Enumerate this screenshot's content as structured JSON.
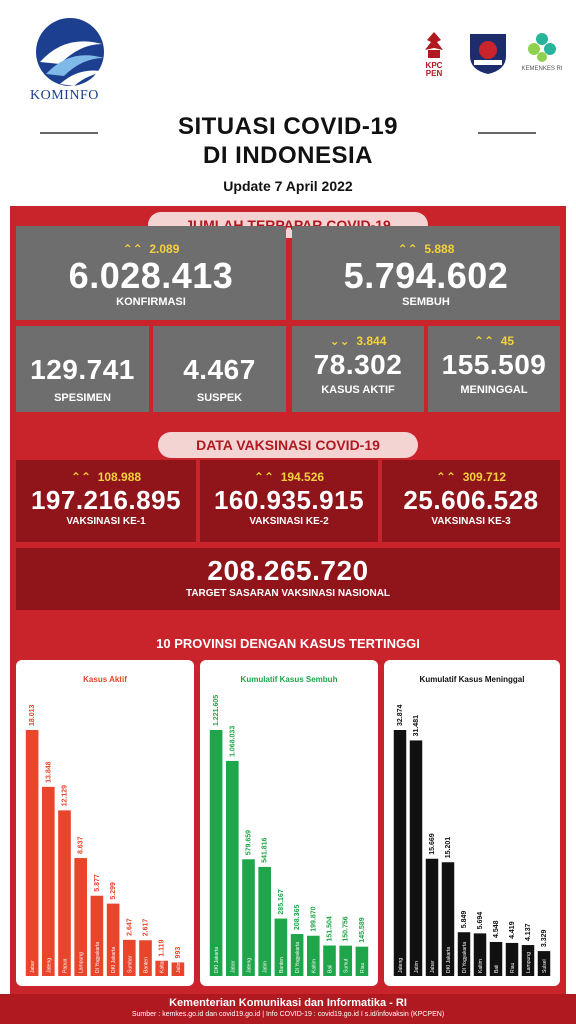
{
  "header": {
    "logo_text": "KOMINFO",
    "partners": [
      {
        "icon": "garuda-kpcpen-icon",
        "label": "KPC PEN"
      },
      {
        "icon": "satgas-covid-emblem-icon",
        "label": ""
      },
      {
        "icon": "kemenkes-icon",
        "label": "KEMENKES RI"
      }
    ],
    "title_line1": "SITUASI COVID-19",
    "title_line2": "DI INDONESIA",
    "update": "Update 7 April 2022"
  },
  "exposed": {
    "section_title": "JUMLAH TERPAPAR COVID-19",
    "konfirmasi": {
      "delta": "2.089",
      "value": "6.028.413",
      "label": "KONFIRMASI"
    },
    "sembuh": {
      "delta": "5.888",
      "value": "5.794.602",
      "label": "SEMBUH"
    },
    "spesimen": {
      "value": "129.741",
      "label": "SPESIMEN"
    },
    "suspek": {
      "value": "4.467",
      "label": "SUSPEK"
    },
    "aktif": {
      "delta": "3.844",
      "value": "78.302",
      "label": "KASUS AKTIF"
    },
    "meninggal": {
      "delta": "45",
      "value": "155.509",
      "label": "MENINGGAL"
    }
  },
  "vaccination": {
    "section_title": "DATA VAKSINASI COVID-19",
    "dose1": {
      "delta": "108.988",
      "value": "197.216.895",
      "label": "VAKSINASI KE-1"
    },
    "dose2": {
      "delta": "194.526",
      "value": "160.935.915",
      "label": "VAKSINASI KE-2"
    },
    "dose3": {
      "delta": "309.712",
      "value": "25.606.528",
      "label": "VAKSINASI KE-3"
    },
    "target": {
      "value": "208.265.720",
      "label": "TARGET SASARAN VAKSINASI NASIONAL"
    }
  },
  "provinces": {
    "section_title": "10 PROVINSI DENGAN KASUS TERTINGGI"
  },
  "chart_data": [
    {
      "type": "bar",
      "title": "Kasus Aktif",
      "color": "#e8452a",
      "categories": [
        "Jabar",
        "Jateng",
        "Papua",
        "Lampung",
        "DI Yogyakarta",
        "DKI Jakarta",
        "Sumbar",
        "Banten",
        "Kaltara",
        "Jatim"
      ],
      "labels": [
        "18.013",
        "13.848",
        "12.129",
        "8.637",
        "5.877",
        "5.299",
        "2.647",
        "2.617",
        "1.119",
        "993"
      ],
      "values": [
        18013,
        13848,
        12129,
        8637,
        5877,
        5299,
        2647,
        2617,
        1119,
        993
      ]
    },
    {
      "type": "bar",
      "title": "Kumulatif Kasus Sembuh",
      "color": "#1fa54a",
      "categories": [
        "DKI Jakarta",
        "Jabar",
        "Jateng",
        "Jatim",
        "Banten",
        "DI Yogyakarta",
        "Kaltim",
        "Bali",
        "Sumut",
        "Riau"
      ],
      "labels": [
        "1.221.605",
        "1.068.033",
        "579.659",
        "541.816",
        "285.167",
        "208.365",
        "199.870",
        "151.504",
        "150.756",
        "145.589"
      ],
      "values": [
        1221605,
        1068033,
        579659,
        541816,
        285167,
        208365,
        199870,
        151504,
        150756,
        145589
      ]
    },
    {
      "type": "bar",
      "title": "Kumulatif Kasus Meninggal",
      "color": "#111111",
      "categories": [
        "Jateng",
        "Jatim",
        "Jabar",
        "DKI Jakarta",
        "DI Yogyakarta",
        "Kaltim",
        "Bali",
        "Riau",
        "Lampung",
        "Sulsel"
      ],
      "labels": [
        "32.874",
        "31.481",
        "15.669",
        "15.201",
        "5.849",
        "5.694",
        "4.548",
        "4.419",
        "4.137",
        "3.329"
      ],
      "values": [
        32874,
        31481,
        15669,
        15201,
        5849,
        5694,
        4548,
        4419,
        4137,
        3329
      ]
    }
  ],
  "footer": {
    "line1": "Kementerian Komunikasi dan Informatika - RI",
    "line2": "Sumber : kemkes.go.id dan covid19.go.id | Info COVID-19 : covid19.go.id I s.id/infovaksin (KPCPEN)"
  },
  "colors": {
    "red": "#c9232b",
    "dark_red": "#8f151b",
    "grey": "#6e6e6e",
    "yellow": "#f5d23b"
  }
}
